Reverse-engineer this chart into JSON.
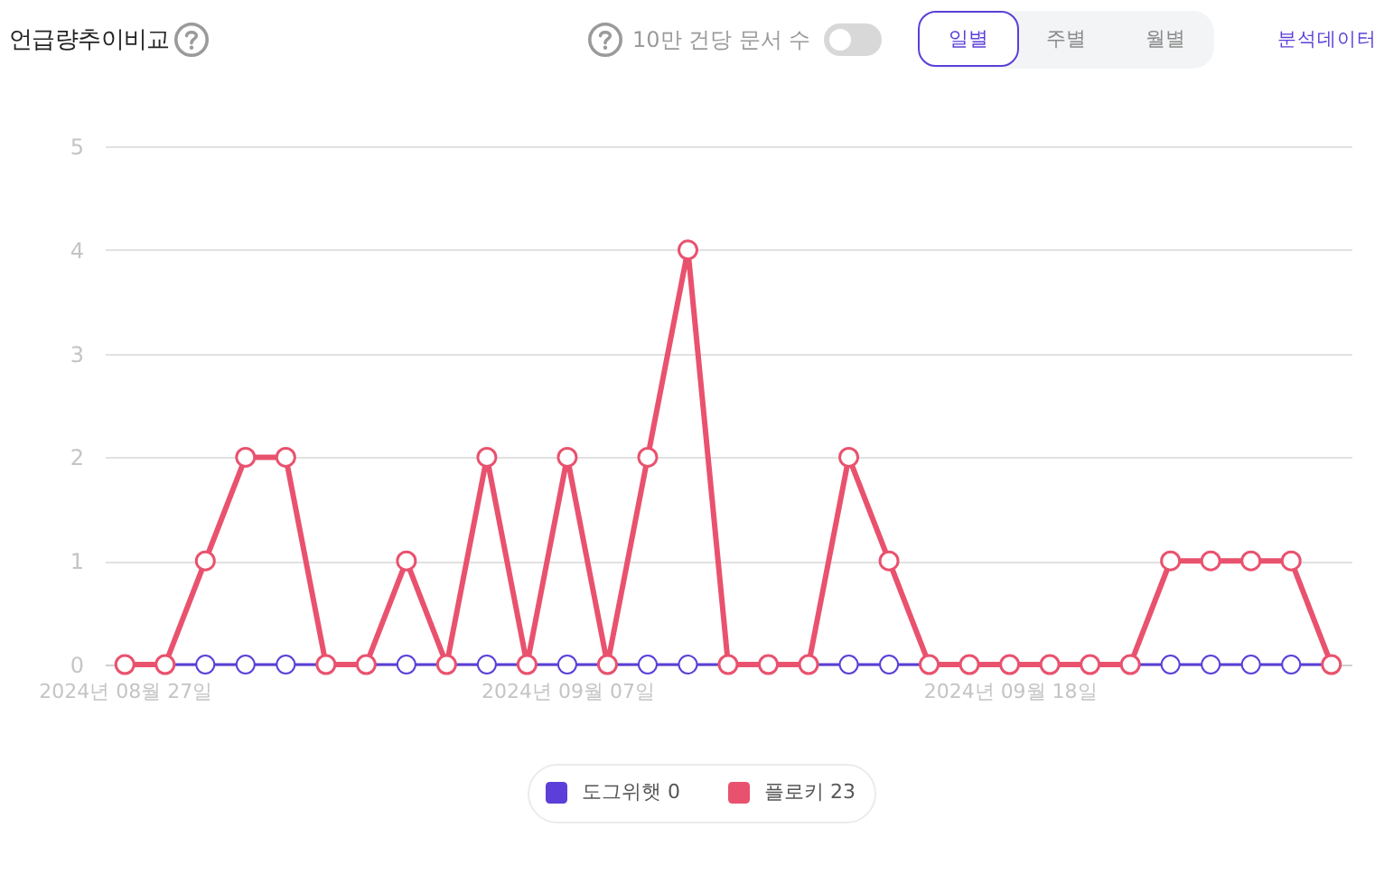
{
  "chart_data": {
    "type": "line",
    "title": "언급량추이비교",
    "annotations": [
      "10만 건당 문서 수",
      "일별",
      "주별",
      "월별",
      "분석데이터"
    ],
    "x": [
      "2024-08-27",
      "2024-08-28",
      "2024-08-29",
      "2024-08-30",
      "2024-08-31",
      "2024-09-01",
      "2024-09-02",
      "2024-09-03",
      "2024-09-04",
      "2024-09-05",
      "2024-09-06",
      "2024-09-07",
      "2024-09-08",
      "2024-09-09",
      "2024-09-10",
      "2024-09-11",
      "2024-09-12",
      "2024-09-13",
      "2024-09-14",
      "2024-09-15",
      "2024-09-16",
      "2024-09-17",
      "2024-09-18",
      "2024-09-19",
      "2024-09-20",
      "2024-09-21",
      "2024-09-22",
      "2024-09-23",
      "2024-09-24",
      "2024-09-25",
      "2024-09-26"
    ],
    "xlim": [
      "2024-08-26T12:00",
      "2024-09-26T12:00"
    ],
    "xticks": [
      {
        "value": "2024-08-27",
        "label": "2024년 08월 27일"
      },
      {
        "value": "2024-09-07",
        "label": "2024년 09월 07일"
      },
      {
        "value": "2024-09-18",
        "label": "2024년 09월 18일"
      }
    ],
    "ylim": [
      0,
      5
    ],
    "yticks": [
      0,
      1,
      2,
      3,
      4,
      5
    ],
    "grid": "y",
    "legend": "bottom",
    "marker": "circle",
    "line_style": "solid",
    "series": [
      {
        "name": "도그위햇 0",
        "color": "#5b3fd8",
        "values": [
          0,
          0,
          0,
          0,
          0,
          0,
          0,
          0,
          0,
          0,
          0,
          0,
          0,
          0,
          0,
          0,
          0,
          0,
          0,
          0,
          0,
          0,
          0,
          0,
          0,
          0,
          0,
          0,
          0,
          0,
          0
        ]
      },
      {
        "name": "플로키 23",
        "color": "#e9526e",
        "values": [
          0,
          0,
          1,
          2,
          2,
          0,
          0,
          1,
          0,
          2,
          0,
          2,
          0,
          2,
          4,
          0,
          0,
          0,
          2,
          1,
          0,
          0,
          0,
          0,
          0,
          0,
          1,
          1,
          1,
          1,
          0
        ]
      }
    ]
  }
}
